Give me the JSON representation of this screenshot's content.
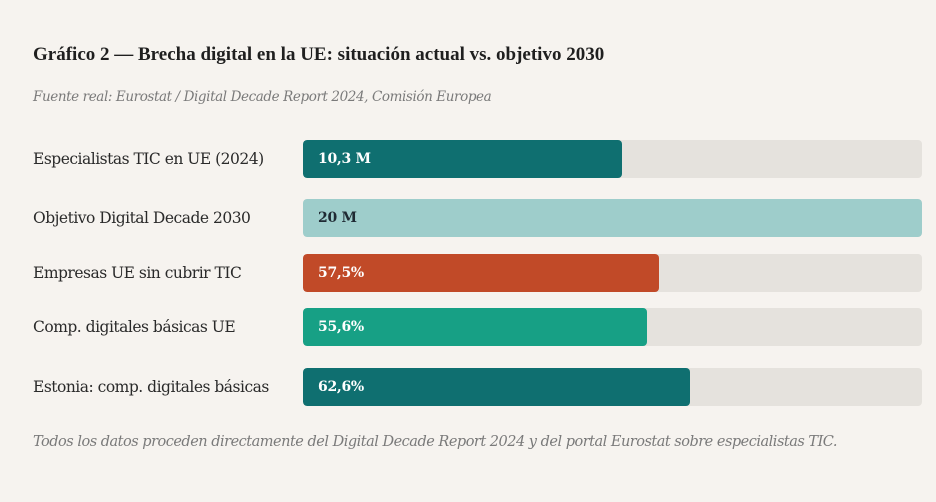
{
  "chart_data": {
    "type": "bar",
    "orientation": "horizontal",
    "title": "Gráfico 2 — Brecha digital en la UE: situación actual vs. objetivo 2030",
    "subtitle": "Fuente real: Eurostat / Digital Decade Report 2024, Comisión Europea",
    "note": "Todos los datos proceden directamente del Digital Decade Report 2024 y del portal Eurostat sobre especialistas TIC.",
    "xlabel": "",
    "ylabel": "",
    "xlim": [
      0,
      100
    ],
    "grid": false,
    "legend": "none",
    "categories": [
      "Especialistas TIC en UE (2024)",
      "Objetivo Digital Decade 2030",
      "Empresas UE sin cubrir TIC",
      "Comp. digitales básicas UE",
      "Estonia: comp. digitales básicas"
    ],
    "bars": [
      {
        "label": "Especialistas TIC en UE (2024)",
        "value_label": "10,3 M",
        "value": 10.3,
        "unit": "M",
        "fill_percent": 51.5,
        "color": "#0f6f70",
        "text_color": "#ffffff"
      },
      {
        "label": "Objetivo Digital Decade 2030",
        "value_label": "20 M",
        "value": 20,
        "unit": "M",
        "fill_percent": 100,
        "color": "#9ecdcb",
        "text_color": "#1f2a33"
      },
      {
        "label": "Empresas UE sin cubrir TIC",
        "value_label": "57,5%",
        "value": 57.5,
        "unit": "%",
        "fill_percent": 57.5,
        "color": "#c14a28",
        "text_color": "#ffffff"
      },
      {
        "label": "Comp. digitales básicas UE",
        "value_label": "55,6%",
        "value": 55.6,
        "unit": "%",
        "fill_percent": 55.6,
        "color": "#17a085",
        "text_color": "#ffffff"
      },
      {
        "label": "Estonia: comp. digitales básicas",
        "value_label": "62,6%",
        "value": 62.6,
        "unit": "%",
        "fill_percent": 62.6,
        "color": "#0f6f70",
        "text_color": "#ffffff"
      }
    ],
    "track_color": "#e5e2dd"
  }
}
